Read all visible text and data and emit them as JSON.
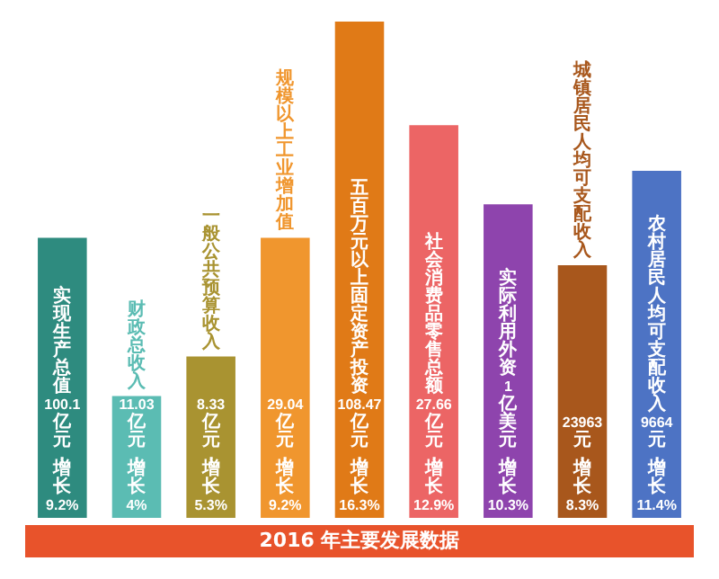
{
  "chart_data": {
    "type": "bar",
    "title": "2016 年主要发展数据",
    "tick_labels": false,
    "categories": [
      "实现生产总值",
      "财政总收入",
      "一般公共预算收入",
      "规模以上工业增加值",
      "五百万元以上固定资产投资",
      "社会消费品零售总额",
      "实际利用外资",
      "城镇居民人均可支配收入",
      "农村居民人均可支配收入"
    ],
    "values": [
      9.2,
      4,
      5.3,
      9.2,
      16.3,
      12.9,
      10.3,
      8.3,
      11.4
    ],
    "value_labels": [
      "100.1亿元，增长9.2%",
      "11.03亿元，增长4%",
      "8.33亿元，增长5.3%",
      "29.04亿元，增长9.2%",
      "108.47亿元，增长16.3%",
      "27.66亿元，增长12.9%",
      "1亿美元，增长10.3%",
      "23963元，增长8.3%",
      "9664元，增长11.4%"
    ],
    "colors": [
      "#2e8b7f",
      "#5bbcb3",
      "#a99331",
      "#f0962e",
      "#e07a17",
      "#ec6565",
      "#8e44ad",
      "#a8571c",
      "#4d73c4"
    ]
  }
}
